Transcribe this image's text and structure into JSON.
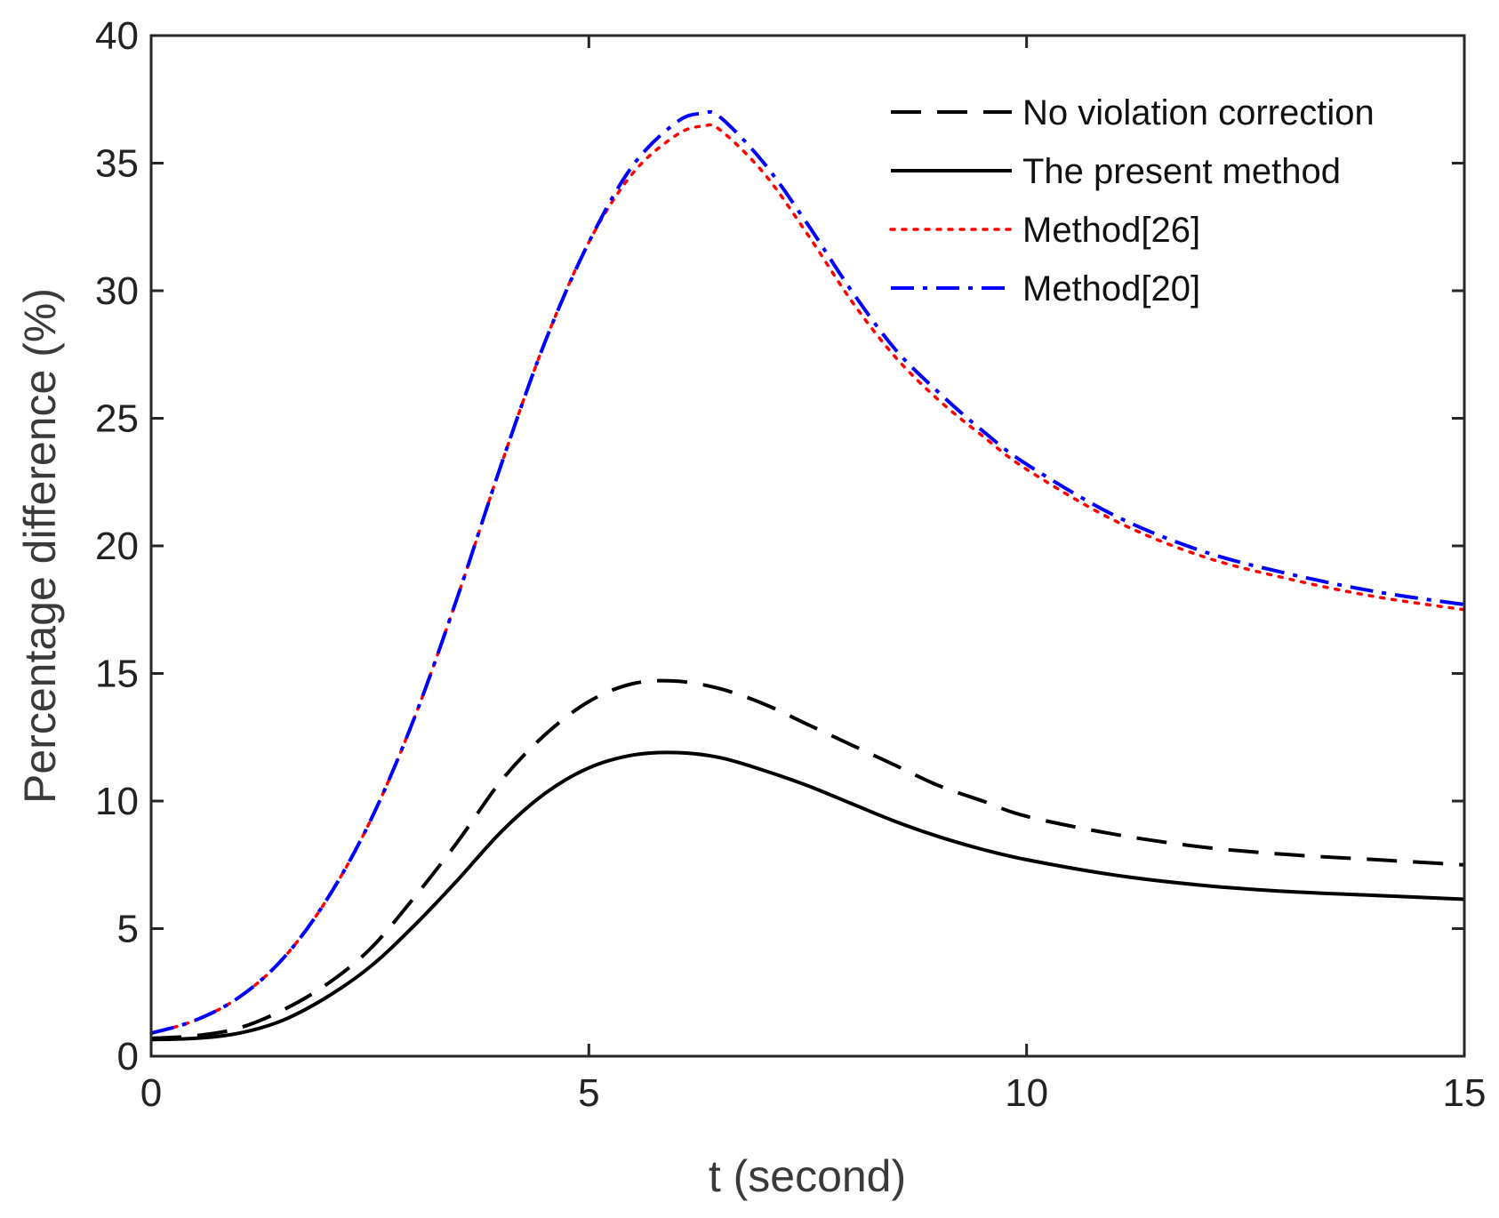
{
  "chart_data": {
    "type": "line",
    "title": "",
    "xlabel": "t (second)",
    "ylabel": "Percentage difference (%)",
    "xlim": [
      0,
      15
    ],
    "ylim": [
      0,
      40
    ],
    "xticks": [
      0,
      5,
      10,
      15
    ],
    "yticks": [
      0,
      5,
      10,
      15,
      20,
      25,
      30,
      35,
      40
    ],
    "grid": false,
    "legend_position": "top-right",
    "series": [
      {
        "name": "No violation correction",
        "color": "#000000",
        "style": "dashed",
        "x": [
          0,
          0.5,
          1,
          1.5,
          2,
          2.5,
          3,
          3.5,
          4,
          4.5,
          5,
          5.5,
          6,
          6.5,
          7,
          7.5,
          8,
          8.5,
          9,
          9.5,
          10,
          11,
          12,
          13,
          14,
          15
        ],
        "y": [
          0.7,
          0.8,
          1.1,
          1.8,
          2.8,
          4.2,
          6.2,
          8.4,
          10.8,
          12.6,
          13.9,
          14.6,
          14.7,
          14.4,
          13.8,
          13.0,
          12.2,
          11.4,
          10.6,
          10.0,
          9.4,
          8.7,
          8.2,
          7.9,
          7.7,
          7.5
        ]
      },
      {
        "name": "The present method",
        "color": "#000000",
        "style": "solid",
        "x": [
          0,
          0.5,
          1,
          1.5,
          2,
          2.5,
          3,
          3.5,
          4,
          4.5,
          5,
          5.5,
          6,
          6.5,
          7,
          7.5,
          8,
          8.5,
          9,
          9.5,
          10,
          11,
          12,
          13,
          14,
          15
        ],
        "y": [
          0.65,
          0.7,
          0.9,
          1.4,
          2.3,
          3.5,
          5.1,
          6.9,
          8.8,
          10.3,
          11.3,
          11.8,
          11.9,
          11.7,
          11.2,
          10.6,
          9.9,
          9.2,
          8.6,
          8.1,
          7.7,
          7.1,
          6.7,
          6.45,
          6.3,
          6.15
        ]
      },
      {
        "name": "Method[26]",
        "color": "#ff0000",
        "style": "dotted",
        "x": [
          0,
          0.5,
          1,
          1.5,
          2,
          2.5,
          3,
          3.5,
          4,
          4.5,
          5,
          5.5,
          6,
          6.3,
          6.5,
          7,
          7.5,
          8,
          8.5,
          9,
          9.5,
          10,
          11,
          12,
          13,
          14,
          15
        ],
        "y": [
          0.9,
          1.4,
          2.3,
          3.8,
          6.1,
          9.2,
          13.2,
          18.0,
          23.2,
          28.0,
          31.9,
          34.6,
          36.1,
          36.45,
          36.3,
          34.6,
          32.2,
          29.6,
          27.4,
          25.7,
          24.3,
          23.0,
          21.0,
          19.6,
          18.7,
          18.0,
          17.5
        ]
      },
      {
        "name": "Method[20]",
        "color": "#0000ff",
        "style": "dashdot",
        "x": [
          0,
          0.5,
          1,
          1.5,
          2,
          2.5,
          3,
          3.5,
          4,
          4.5,
          5,
          5.5,
          6,
          6.3,
          6.5,
          7,
          7.5,
          8,
          8.5,
          9,
          9.5,
          10,
          11,
          12,
          13,
          14,
          15
        ],
        "y": [
          0.9,
          1.4,
          2.3,
          3.8,
          6.1,
          9.2,
          13.2,
          18.0,
          23.2,
          28.0,
          31.9,
          34.9,
          36.6,
          36.95,
          36.8,
          35.0,
          32.6,
          30.0,
          27.7,
          26.0,
          24.5,
          23.2,
          21.2,
          19.8,
          18.9,
          18.2,
          17.7
        ]
      }
    ]
  }
}
